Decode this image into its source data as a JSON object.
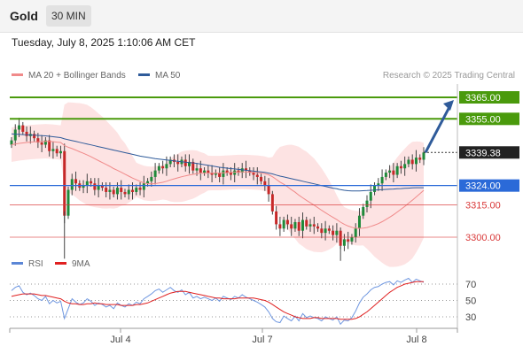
{
  "header": {
    "instrument": "Gold",
    "timeframe": "30 MIN"
  },
  "datetime": "Tuesday, July 8, 2025 1:10:06 AM CET",
  "legend": {
    "ma20": {
      "label": "MA 20 + Bollinger Bands",
      "color": "#f08a8a"
    },
    "ma50": {
      "label": "MA 50",
      "color": "#2f5b9a"
    },
    "rsi": {
      "label": "RSI",
      "color": "#5b86d6"
    },
    "rsi_ma": {
      "label": "9MA",
      "color": "#e02020"
    }
  },
  "credit": "Research © 2025 Trading Central",
  "chart_data": [
    {
      "type": "candlestick",
      "title": "",
      "x_labels": [
        "Jul 4",
        "Jul 7",
        "Jul 8"
      ],
      "ylim": [
        3290,
        3368
      ],
      "levels": [
        {
          "value": 3365.0,
          "label": "3365.00",
          "kind": "target",
          "color": "#4a9a0c"
        },
        {
          "value": 3355.0,
          "label": "3355.00",
          "kind": "target",
          "color": "#4a9a0c"
        },
        {
          "value": 3339.38,
          "label": "3339.38",
          "kind": "last",
          "color": "#222222"
        },
        {
          "value": 3324.0,
          "label": "3324.00",
          "kind": "pivot",
          "color": "#2b6ad8"
        },
        {
          "value": 3315.0,
          "label": "3315.00",
          "kind": "support",
          "color": "#d93a3a"
        },
        {
          "value": 3300.0,
          "label": "3300.00",
          "kind": "support",
          "color": "#d93a3a"
        }
      ],
      "close": [
        3345,
        3350,
        3352,
        3349,
        3347,
        3348,
        3346,
        3344,
        3343,
        3345,
        3340,
        3341,
        3339,
        3340,
        3310,
        3322,
        3327,
        3325,
        3323,
        3324,
        3326,
        3325,
        3322,
        3324,
        3323,
        3321,
        3322,
        3320,
        3323,
        3321,
        3320,
        3322,
        3321,
        3323,
        3322,
        3325,
        3326,
        3328,
        3331,
        3333,
        3332,
        3334,
        3336,
        3335,
        3334,
        3336,
        3333,
        3335,
        3331,
        3332,
        3330,
        3331,
        3330,
        3329,
        3330,
        3328,
        3331,
        3330,
        3329,
        3331,
        3330,
        3332,
        3331,
        3330,
        3329,
        3328,
        3326,
        3324,
        3320,
        3312,
        3306,
        3304,
        3308,
        3306,
        3304,
        3307,
        3303,
        3308,
        3305,
        3306,
        3305,
        3304,
        3302,
        3304,
        3303,
        3301,
        3303,
        3296,
        3299,
        3298,
        3300,
        3304,
        3310,
        3314,
        3317,
        3321,
        3324,
        3325,
        3328,
        3330,
        3331,
        3329,
        3333,
        3332,
        3334,
        3336,
        3334,
        3337,
        3336,
        3339.38
      ],
      "ma20": [
        3343,
        3343.3,
        3343.6,
        3343.8,
        3344,
        3344.2,
        3344.3,
        3344.4,
        3344.5,
        3344.6,
        3344.5,
        3344.4,
        3344.2,
        3344,
        3342.6,
        3341.8,
        3341.2,
        3340.5,
        3339.7,
        3339,
        3338.2,
        3337.4,
        3336.5,
        3335.6,
        3334.7,
        3333.8,
        3332.9,
        3331.9,
        3331.1,
        3330.2,
        3329.3,
        3328.4,
        3327.5,
        3326.7,
        3325.9,
        3325.2,
        3324.9,
        3324.8,
        3324.9,
        3325.2,
        3325.5,
        3326,
        3326.6,
        3327.1,
        3327.6,
        3328.1,
        3328.5,
        3328.9,
        3329.2,
        3329.5,
        3329.7,
        3329.8,
        3329.8,
        3329.8,
        3329.8,
        3329.8,
        3329.9,
        3330,
        3330.1,
        3330.2,
        3330.3,
        3330.3,
        3330.3,
        3330.2,
        3330.1,
        3330,
        3329.8,
        3329.5,
        3329,
        3328.1,
        3326.9,
        3325.6,
        3324.6,
        3323.4,
        3322.1,
        3320.9,
        3319.5,
        3318.3,
        3317.1,
        3316,
        3314.9,
        3313.7,
        3312.5,
        3311.4,
        3310.3,
        3309.2,
        3308.2,
        3307,
        3306,
        3305.2,
        3304.6,
        3304.2,
        3304.1,
        3304.2,
        3304.5,
        3305,
        3305.6,
        3306.3,
        3307.2,
        3308.2,
        3309.3,
        3310.4,
        3311.7,
        3313,
        3314.3,
        3315.8,
        3317.2,
        3318.7,
        3320.2,
        3321.8
      ],
      "ma50": [
        3348,
        3347.9,
        3347.8,
        3347.7,
        3347.6,
        3347.5,
        3347.4,
        3347.3,
        3347.2,
        3347.1,
        3346.9,
        3346.7,
        3346.5,
        3346.3,
        3345.7,
        3345.3,
        3344.9,
        3344.5,
        3344.1,
        3343.7,
        3343.3,
        3342.9,
        3342.5,
        3342.1,
        3341.7,
        3341.3,
        3340.9,
        3340.5,
        3340.1,
        3339.7,
        3339.3,
        3338.9,
        3338.5,
        3338.1,
        3337.7,
        3337.4,
        3337.1,
        3336.8,
        3336.5,
        3336.3,
        3336.1,
        3335.9,
        3335.7,
        3335.5,
        3335.3,
        3335.1,
        3334.9,
        3334.7,
        3334.5,
        3334.3,
        3334,
        3333.7,
        3333.4,
        3333.1,
        3332.8,
        3332.5,
        3332.3,
        3332.1,
        3331.9,
        3331.7,
        3331.5,
        3331.3,
        3331.1,
        3330.9,
        3330.7,
        3330.5,
        3330.3,
        3330.1,
        3329.8,
        3329.4,
        3328.9,
        3328.4,
        3328,
        3327.6,
        3327.2,
        3326.8,
        3326.4,
        3326,
        3325.6,
        3325.2,
        3324.8,
        3324.4,
        3324,
        3323.6,
        3323.2,
        3322.8,
        3322.5,
        3322.1,
        3321.8,
        3321.6,
        3321.5,
        3321.5,
        3321.5,
        3321.6,
        3321.7,
        3321.8,
        3321.9,
        3322,
        3322.1,
        3322.2,
        3322.3,
        3322.4,
        3322.5,
        3322.6,
        3322.7,
        3322.8,
        3322.9,
        3323,
        3323,
        3323
      ],
      "rsi": [
        62,
        66,
        68,
        60,
        57,
        59,
        56,
        52,
        50,
        55,
        46,
        50,
        47,
        49,
        28,
        40,
        52,
        48,
        45,
        47,
        52,
        49,
        44,
        47,
        45,
        42,
        44,
        40,
        47,
        44,
        42,
        46,
        44,
        48,
        46,
        52,
        55,
        58,
        62,
        64,
        60,
        63,
        66,
        62,
        60,
        63,
        57,
        60,
        53,
        55,
        52,
        54,
        52,
        50,
        53,
        49,
        55,
        53,
        51,
        55,
        53,
        57,
        54,
        52,
        50,
        48,
        45,
        42,
        36,
        28,
        24,
        23,
        31,
        28,
        25,
        31,
        25,
        34,
        29,
        31,
        29,
        28,
        25,
        30,
        28,
        26,
        30,
        21,
        26,
        25,
        29,
        37,
        47,
        54,
        58,
        63,
        66,
        67,
        70,
        72,
        73,
        69,
        74,
        72,
        75,
        77,
        72,
        76,
        74,
        72
      ],
      "rsi_ma": [
        55,
        56,
        57,
        58,
        58,
        58,
        58,
        57,
        56,
        56,
        55,
        54,
        53,
        52,
        49,
        47,
        46,
        46,
        45,
        45,
        46,
        46,
        47,
        46,
        46,
        45,
        45,
        45,
        45,
        44,
        44,
        44,
        44,
        45,
        45,
        46,
        47,
        49,
        51,
        53,
        55,
        57,
        59,
        60,
        61,
        61,
        61,
        60,
        59,
        58,
        57,
        56,
        55,
        54,
        53,
        53,
        52,
        52,
        52,
        52,
        53,
        53,
        53,
        53,
        53,
        52,
        51,
        50,
        48,
        45,
        42,
        39,
        36,
        34,
        32,
        30,
        29,
        28,
        28,
        28,
        29,
        29,
        28,
        28,
        28,
        28,
        28,
        27,
        27,
        27,
        27,
        28,
        30,
        33,
        36,
        40,
        44,
        48,
        52,
        56,
        60,
        63,
        66,
        68,
        70,
        71,
        72,
        73,
        73,
        73
      ],
      "rsi_ticks": [
        30,
        50,
        70
      ],
      "forecast_arrow_target": 3365.0
    }
  ]
}
